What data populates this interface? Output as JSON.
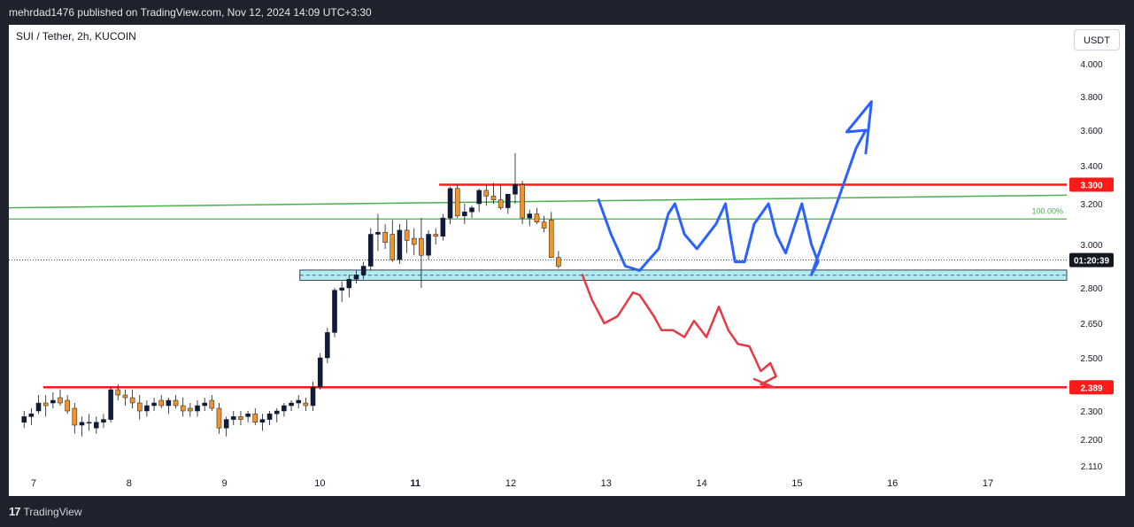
{
  "header": {
    "publisher_line": "mehrdad1476 published on TradingView.com, Nov 12, 2024 14:09 UTC+3:30"
  },
  "symbol": {
    "label": "SUI / Tether, 2h, KUCOIN"
  },
  "currency_button": "USDT",
  "footer": {
    "brand": "TradingView",
    "logo_glyph": "17"
  },
  "colors": {
    "up_candle": "#0f1b3d",
    "down_candle": "#f0932b",
    "red_line": "#ff1a1a",
    "green_line": "#4caf50",
    "zone_fill": "#b2ebf2",
    "blue_draw": "#2962ff",
    "red_draw": "#e53946"
  },
  "chart_data": {
    "type": "candlestick",
    "title": "SUI / Tether, 2h, KUCOIN",
    "y_ticks": [
      "4.000",
      "3.800",
      "3.600",
      "3.400",
      "3.200",
      "3.000",
      "2.800",
      "2.650",
      "2.500",
      "2.300",
      "2.200",
      "2.110"
    ],
    "x_ticks": [
      "7",
      "8",
      "9",
      "10",
      "11",
      "12",
      "13",
      "14",
      "15",
      "16",
      "17"
    ],
    "ylim": [
      2.08,
      4.12
    ],
    "x_range_days": [
      6.95,
      17.95
    ],
    "price_labels": [
      {
        "text": "3.300",
        "value": 3.3,
        "color": "#ff1a1a"
      },
      {
        "text": "2.389",
        "value": 2.389,
        "color": "#ff1a1a"
      },
      {
        "text": "01:20:39",
        "value": 2.928,
        "color": "#131722"
      }
    ],
    "fib_label": "100.00%",
    "current_price": 2.928,
    "support_zone": {
      "top": 2.882,
      "bottom": 2.835,
      "mid": 2.858,
      "start_day": 9.79
    },
    "resistance_line": {
      "value": 3.3,
      "start_day": 11.25
    },
    "support_line": {
      "value": 2.389,
      "start_day": 7.1
    },
    "green_line_lower": {
      "value": 3.125
    },
    "green_line_rising": {
      "start_value": 3.18,
      "end_value": 3.245
    },
    "candles": [
      [
        2.26,
        2.3,
        2.24,
        2.28
      ],
      [
        2.28,
        2.31,
        2.25,
        2.29
      ],
      [
        2.3,
        2.36,
        2.29,
        2.33
      ],
      [
        2.33,
        2.36,
        2.28,
        2.32
      ],
      [
        2.33,
        2.37,
        2.31,
        2.34
      ],
      [
        2.35,
        2.38,
        2.32,
        2.33
      ],
      [
        2.34,
        2.36,
        2.29,
        2.3
      ],
      [
        2.31,
        2.33,
        2.22,
        2.25
      ],
      [
        2.25,
        2.28,
        2.21,
        2.26
      ],
      [
        2.26,
        2.29,
        2.23,
        2.26
      ],
      [
        2.24,
        2.28,
        2.22,
        2.26
      ],
      [
        2.26,
        2.29,
        2.24,
        2.27
      ],
      [
        2.27,
        2.39,
        2.26,
        2.38
      ],
      [
        2.38,
        2.4,
        2.34,
        2.36
      ],
      [
        2.36,
        2.38,
        2.32,
        2.35
      ],
      [
        2.35,
        2.38,
        2.31,
        2.33
      ],
      [
        2.33,
        2.36,
        2.27,
        2.3
      ],
      [
        2.3,
        2.34,
        2.28,
        2.32
      ],
      [
        2.32,
        2.35,
        2.3,
        2.33
      ],
      [
        2.34,
        2.36,
        2.31,
        2.32
      ],
      [
        2.32,
        2.35,
        2.29,
        2.34
      ],
      [
        2.34,
        2.36,
        2.31,
        2.32
      ],
      [
        2.32,
        2.35,
        2.28,
        2.3
      ],
      [
        2.31,
        2.33,
        2.28,
        2.3
      ],
      [
        2.3,
        2.34,
        2.28,
        2.32
      ],
      [
        2.32,
        2.35,
        2.3,
        2.33
      ],
      [
        2.34,
        2.36,
        2.3,
        2.31
      ],
      [
        2.31,
        2.33,
        2.22,
        2.24
      ],
      [
        2.24,
        2.28,
        2.21,
        2.27
      ],
      [
        2.27,
        2.3,
        2.25,
        2.28
      ],
      [
        2.28,
        2.3,
        2.25,
        2.27
      ],
      [
        2.28,
        2.3,
        2.26,
        2.29
      ],
      [
        2.29,
        2.31,
        2.25,
        2.26
      ],
      [
        2.26,
        2.29,
        2.23,
        2.27
      ],
      [
        2.27,
        2.3,
        2.25,
        2.29
      ],
      [
        2.29,
        2.31,
        2.26,
        2.3
      ],
      [
        2.3,
        2.33,
        2.28,
        2.32
      ],
      [
        2.32,
        2.34,
        2.3,
        2.33
      ],
      [
        2.33,
        2.36,
        2.31,
        2.34
      ],
      [
        2.33,
        2.35,
        2.3,
        2.32
      ],
      [
        2.32,
        2.41,
        2.3,
        2.39
      ],
      [
        2.39,
        2.52,
        2.38,
        2.5
      ],
      [
        2.5,
        2.63,
        2.48,
        2.61
      ],
      [
        2.61,
        2.8,
        2.59,
        2.79
      ],
      [
        2.79,
        2.83,
        2.74,
        2.8
      ],
      [
        2.8,
        2.86,
        2.76,
        2.84
      ],
      [
        2.84,
        2.88,
        2.82,
        2.86
      ],
      [
        2.86,
        2.92,
        2.84,
        2.9
      ],
      [
        2.9,
        3.08,
        2.88,
        3.05
      ],
      [
        3.05,
        3.15,
        2.97,
        3.06
      ],
      [
        3.06,
        3.1,
        2.98,
        3.01
      ],
      [
        3.05,
        3.12,
        2.92,
        2.93
      ],
      [
        2.93,
        3.1,
        2.91,
        3.07
      ],
      [
        3.07,
        3.12,
        2.96,
        3.02
      ],
      [
        3.03,
        3.08,
        2.95,
        3.0
      ],
      [
        3.03,
        3.13,
        2.8,
        2.95
      ],
      [
        2.95,
        3.07,
        2.93,
        3.05
      ],
      [
        3.05,
        3.08,
        3.0,
        3.04
      ],
      [
        3.04,
        3.15,
        3.02,
        3.13
      ],
      [
        3.13,
        3.29,
        3.1,
        3.28
      ],
      [
        3.28,
        3.3,
        3.13,
        3.14
      ],
      [
        3.14,
        3.2,
        3.1,
        3.16
      ],
      [
        3.16,
        3.19,
        3.13,
        3.18
      ],
      [
        3.2,
        3.28,
        3.16,
        3.27
      ],
      [
        3.27,
        3.3,
        3.19,
        3.24
      ],
      [
        3.24,
        3.31,
        3.2,
        3.22
      ],
      [
        3.22,
        3.3,
        3.17,
        3.18
      ],
      [
        3.18,
        3.25,
        3.15,
        3.25
      ],
      [
        3.25,
        3.47,
        3.2,
        3.3
      ],
      [
        3.3,
        3.32,
        3.1,
        3.13
      ],
      [
        3.13,
        3.17,
        3.09,
        3.15
      ],
      [
        3.15,
        3.18,
        3.1,
        3.11
      ],
      [
        3.11,
        3.14,
        3.06,
        3.08
      ],
      [
        3.12,
        3.16,
        2.94,
        2.94
      ],
      [
        2.94,
        2.97,
        2.89,
        2.9
      ]
    ]
  }
}
